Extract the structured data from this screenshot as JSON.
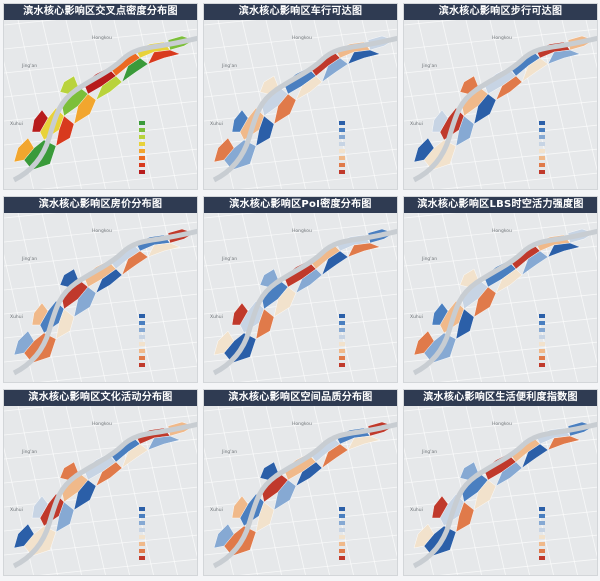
{
  "panels": [
    {
      "title": "滨水核心影响区交叉点密度分布图",
      "palette": "green-red",
      "labels": {
        "top": "Hongkou",
        "left": "Xuhui",
        "mid": "Jing'an"
      }
    },
    {
      "title": "滨水核心影响区车行可达图",
      "palette": "blue-red",
      "labels": {
        "top": "Hongkou",
        "left": "Xuhui",
        "mid": "Jing'an"
      }
    },
    {
      "title": "滨水核心影响区步行可达图",
      "palette": "blue-red",
      "labels": {
        "top": "Hongkou",
        "left": "Xuhui",
        "mid": "Jing'an"
      }
    },
    {
      "title": "滨水核心影响区房价分布图",
      "palette": "blue-red",
      "labels": {
        "top": "Hongkou",
        "left": "Xuhui",
        "mid": "Jing'an"
      }
    },
    {
      "title": "滨水核心影响区PoI密度分布图",
      "palette": "blue-red",
      "labels": {
        "top": "Hongkou",
        "left": "Xuhui",
        "mid": "Jing'an"
      }
    },
    {
      "title": "滨水核心影响区LBS时空活力强度图",
      "palette": "blue-red",
      "labels": {
        "top": "Hongkou",
        "left": "Xuhui",
        "mid": "Jing'an"
      }
    },
    {
      "title": "滨水核心影响区文化活动分布图",
      "palette": "blue-red",
      "labels": {
        "top": "Hongkou",
        "left": "Xuhui",
        "mid": "Jing'an"
      }
    },
    {
      "title": "滨水核心影响区空间品质分布图",
      "palette": "blue-red",
      "labels": {
        "top": "Hongkou",
        "left": "Xuhui",
        "mid": "Jing'an"
      }
    },
    {
      "title": "滨水核心影响区生活便利度指数图",
      "palette": "blue-red",
      "labels": {
        "top": "Hongkou",
        "left": "Xuhui",
        "mid": "Jing'an"
      }
    }
  ],
  "palettes": {
    "green-red": [
      "#3a9a3a",
      "#7cbf3a",
      "#b9d33c",
      "#e8d23a",
      "#f2a62e",
      "#ec6a22",
      "#d83a1e",
      "#b71c1c"
    ],
    "blue-red": [
      "#2b5fa8",
      "#4a7fc0",
      "#86a9d3",
      "#c7d4e4",
      "#f2e2cc",
      "#f0b98a",
      "#e07a4a",
      "#c0392b"
    ]
  },
  "colors": {
    "title_bg": "#2f3b52",
    "map_bg": "#e6e8ea",
    "river": "#c8cdd2",
    "road": "#ffffff"
  }
}
